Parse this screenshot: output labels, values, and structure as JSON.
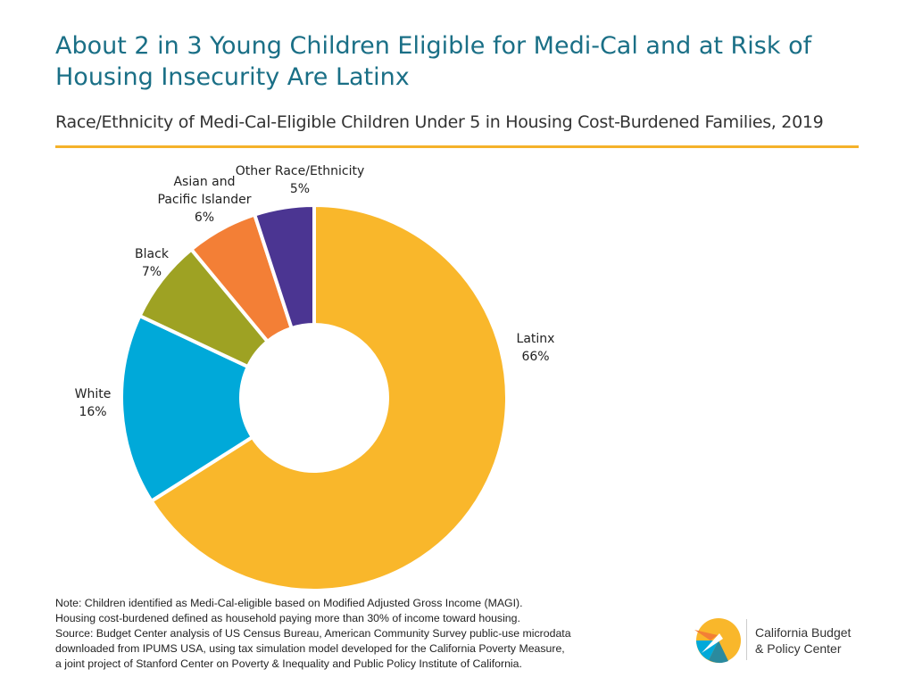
{
  "title": "About 2 in 3 Young Children Eligible for Medi-Cal and at Risk of Housing Insecurity Are Latinx",
  "subtitle": "Race/Ethnicity of Medi-Cal-Eligible Children Under 5 in Housing Cost-Burdened Families, 2019",
  "colors": {
    "title": "#1a6f86",
    "rule": "#f5b22a"
  },
  "chart_data": {
    "type": "pie",
    "donut": true,
    "title": "",
    "categories": [
      "Latinx",
      "White",
      "Black",
      "Asian and Pacific Islander",
      "Other Race/Ethnicity"
    ],
    "values": [
      66,
      16,
      7,
      6,
      5
    ],
    "unit": "%",
    "colors": [
      "#f9b72b",
      "#00a9d9",
      "#9ea223",
      "#f37f36",
      "#4b3592"
    ],
    "start_angle_deg": 0,
    "direction": "clockwise",
    "labels": [
      {
        "lines": [
          "Latinx",
          "66%"
        ]
      },
      {
        "lines": [
          "White",
          "16%"
        ]
      },
      {
        "lines": [
          "Black",
          "7%"
        ]
      },
      {
        "lines": [
          "Asian and",
          "Pacific Islander",
          "6%"
        ]
      },
      {
        "lines": [
          "Other Race/Ethnicity",
          "5%"
        ]
      }
    ]
  },
  "note": {
    "lines": [
      "Note: Children identified as Medi-Cal-eligible based on Modified Adjusted Gross Income (MAGI).",
      "Housing cost-burdened defined as household paying more than 30% of income toward housing.",
      "Source: Budget Center analysis of US Census Bureau, American Community Survey public-use microdata",
      "downloaded from IPUMS USA, using tax simulation model developed for the California Poverty Measure,",
      "a joint project of Stanford Center on Poverty & Inequality and Public Policy Institute of California."
    ]
  },
  "logo": {
    "line1": "California Budget",
    "line2": "& Policy Center"
  }
}
